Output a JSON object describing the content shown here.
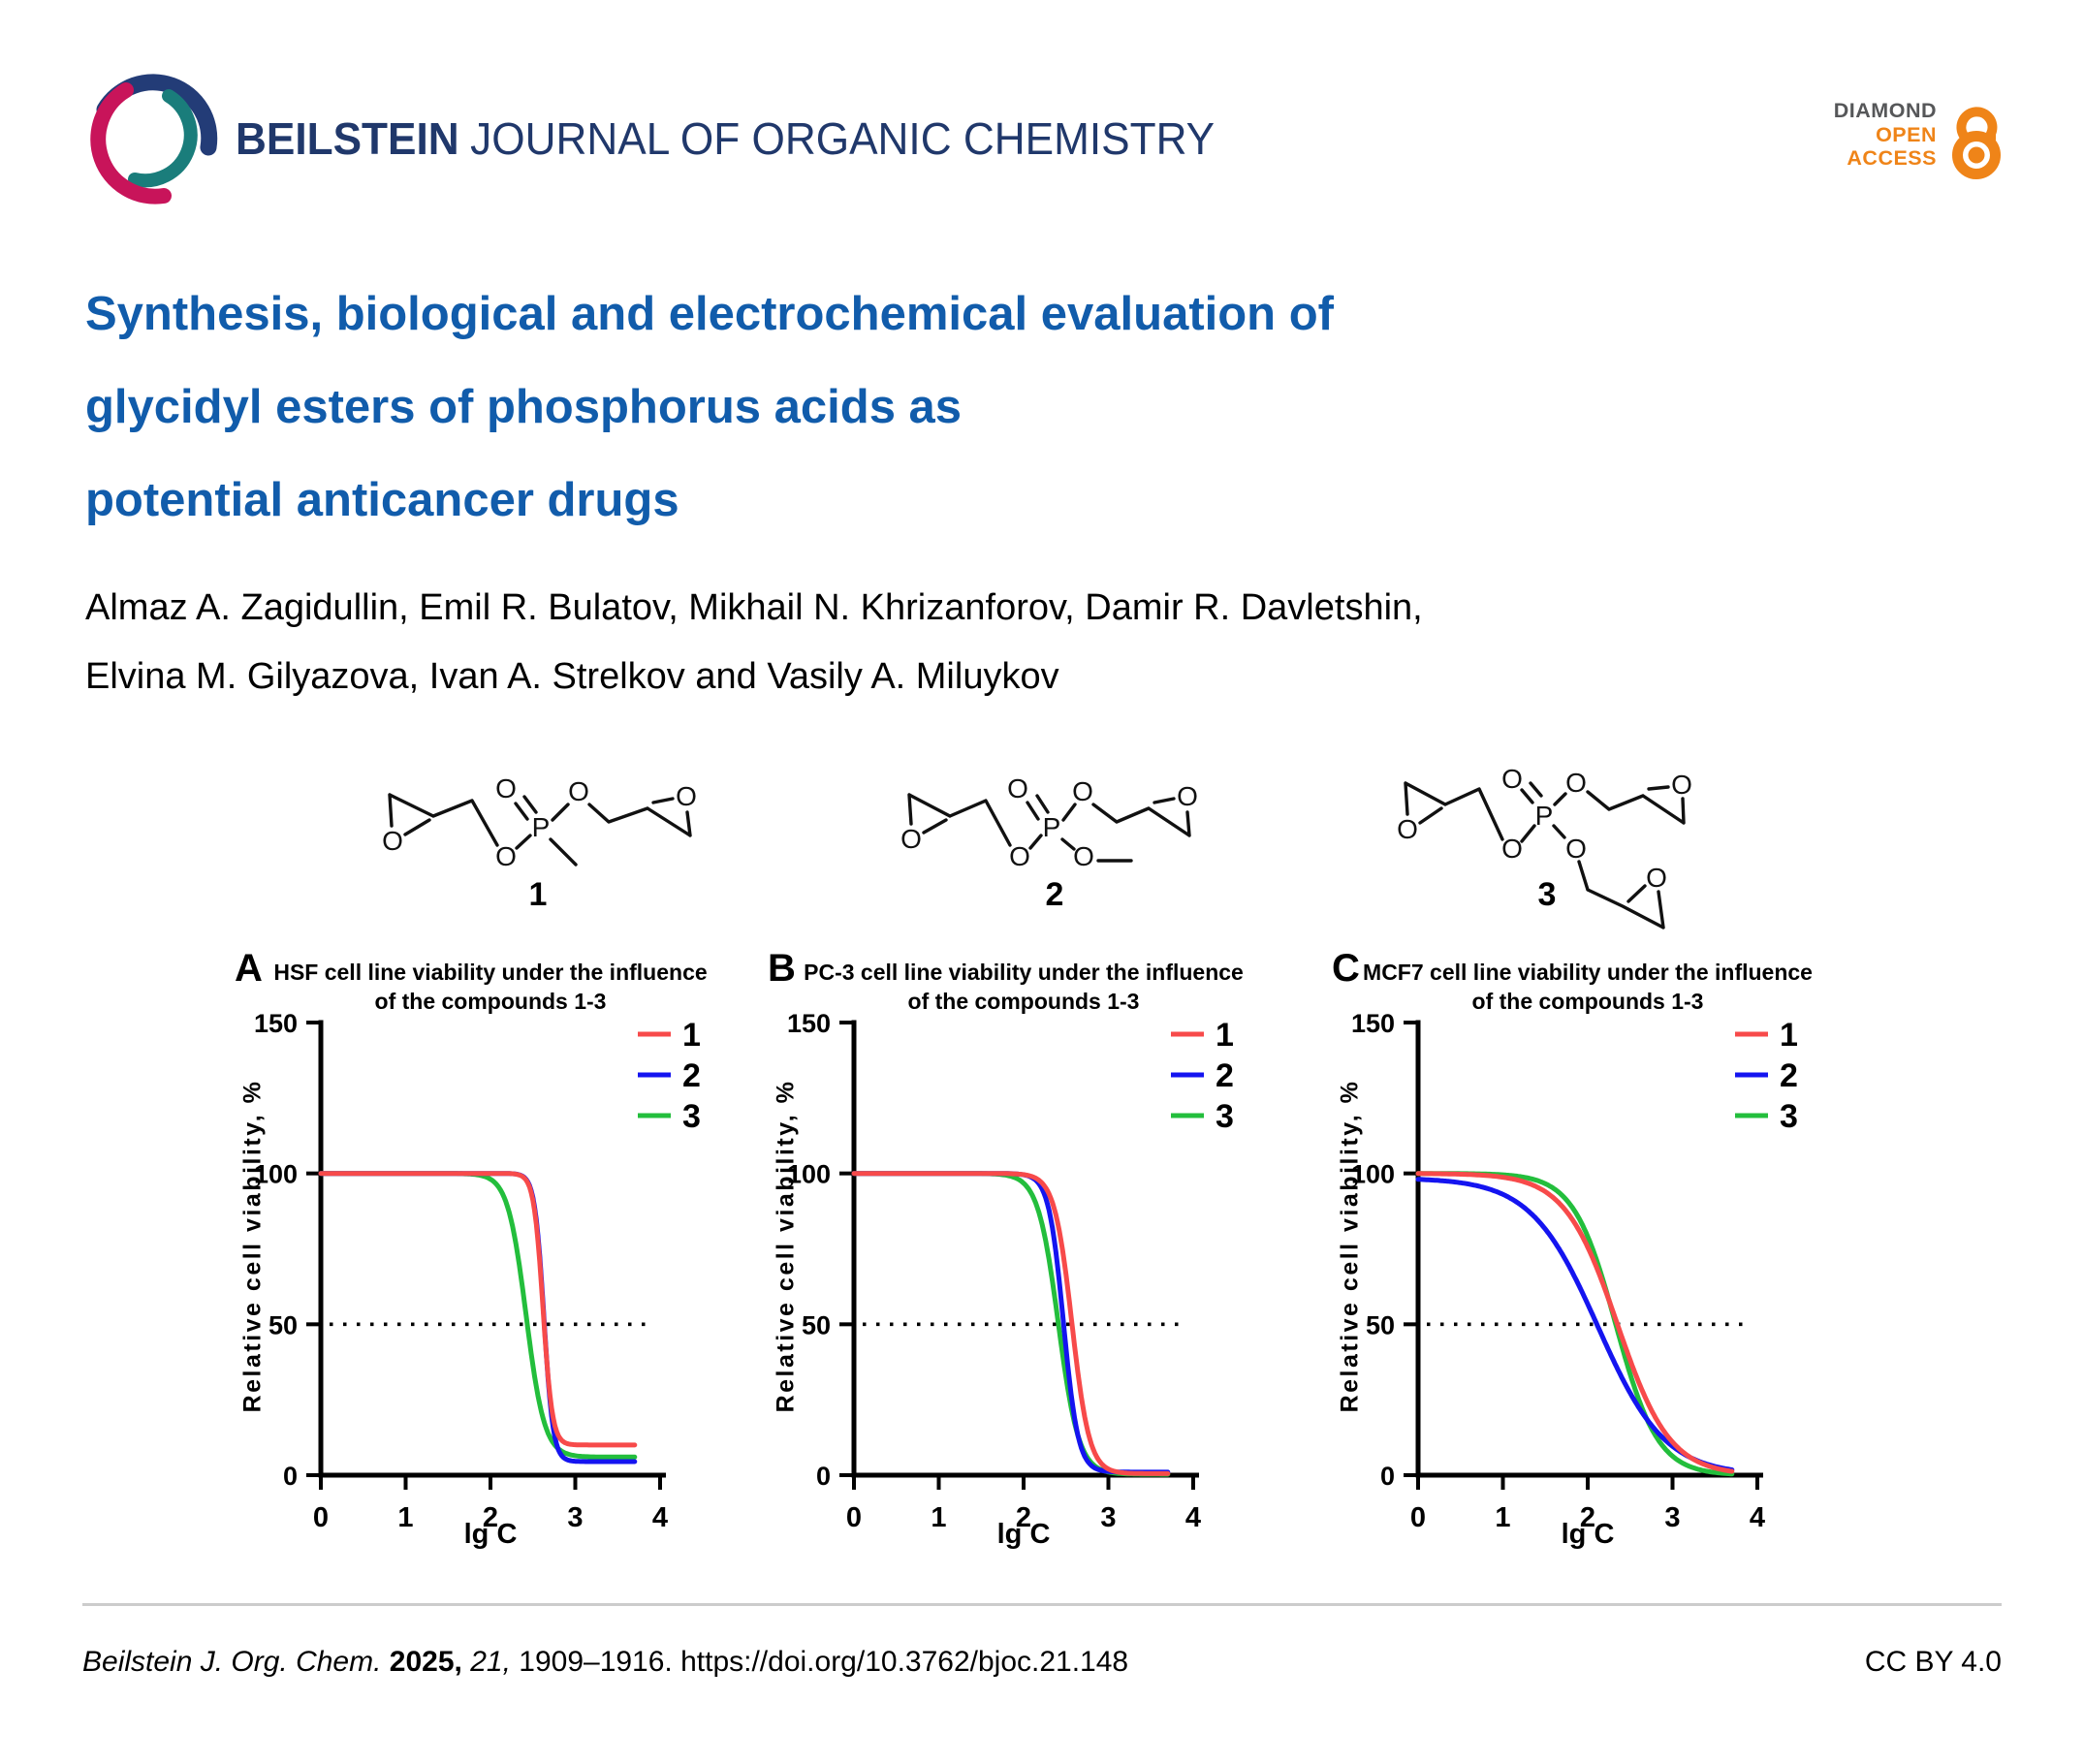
{
  "header": {
    "journal_bold": "BEILSTEIN",
    "journal_rest": "JOURNAL OF ORGANIC CHEMISTRY",
    "badge": {
      "line1": "DIAMOND",
      "line2": "OPEN",
      "line3": "ACCESS"
    }
  },
  "title_lines": [
    "Synthesis, biological and electrochemical evaluation of",
    "glycidyl esters of phosphorus acids as",
    "potential anticancer drugs"
  ],
  "authors_lines": [
    "Almaz A. Zagidullin, Emil R. Bulatov, Mikhail N. Khrizanforov, Damir R. Davletshin,",
    "Elvina M. Gilyazova, Ivan A. Strelkov and Vasily A. Miluykov"
  ],
  "structures": {
    "compounds": [
      {
        "number": "1",
        "atoms": [
          "O",
          "O",
          "P",
          "O",
          "O",
          "O"
        ]
      },
      {
        "number": "2",
        "atoms": [
          "O",
          "O",
          "P",
          "O",
          "O",
          "O",
          "O"
        ]
      },
      {
        "number": "3",
        "atoms": [
          "O",
          "O",
          "P",
          "O",
          "O",
          "O",
          "O",
          "O"
        ]
      }
    ]
  },
  "chart_data": [
    {
      "panel": "A",
      "type": "line",
      "cell_line": "HSF",
      "title": "HSF cell line viability under the influence of the compounds 1-3",
      "title_lines": [
        "HSF cell line viability under the influence",
        "of the compounds 1-3"
      ],
      "xlabel": "lg C",
      "ylabel": "Relative cell viability, %",
      "xlim": [
        0,
        4
      ],
      "ylim": [
        0,
        150
      ],
      "x_ticks": [
        0,
        1,
        2,
        3,
        4
      ],
      "y_ticks": [
        0,
        50,
        100,
        150
      ],
      "reference_line_y": 50,
      "curve_x_range": [
        0,
        3.7
      ],
      "legend_position": "top-right",
      "grid": false,
      "x_samples": [
        0,
        0.5,
        1,
        1.5,
        2,
        2.25,
        2.5,
        2.75,
        3,
        3.25,
        3.5,
        3.7
      ],
      "series": [
        {
          "name": "1",
          "color": "#F74A4A",
          "logistic": {
            "top": 100,
            "bottom": 10,
            "logIC50": 2.62,
            "hill": 8
          },
          "y_samples": [
            100,
            100,
            100,
            100,
            100,
            99.9,
            91.2,
            18.2,
            10.1,
            10,
            10,
            10
          ]
        },
        {
          "name": "2",
          "color": "#1414F0",
          "logistic": {
            "top": 100,
            "bottom": 4.5,
            "logIC50": 2.63,
            "hill": 8
          },
          "y_samples": [
            100,
            100,
            100,
            100,
            100,
            99.9,
            92,
            13.9,
            4.6,
            4.5,
            4.5,
            4.5
          ]
        },
        {
          "name": "3",
          "color": "#23BE3C",
          "logistic": {
            "top": 100,
            "bottom": 6,
            "logIC50": 2.42,
            "hill": 4
          },
          "y_samples": [
            100,
            100,
            100,
            99.9,
            98.1,
            83.7,
            36.4,
            10.3,
            6.4,
            6.1,
            6,
            6
          ]
        }
      ]
    },
    {
      "panel": "B",
      "type": "line",
      "cell_line": "PC-3",
      "title": "PC-3 cell line viability under the influence of the compounds 1-3",
      "title_lines": [
        "PC-3 cell line viability under the influence",
        "of the compounds 1-3"
      ],
      "xlabel": "lg C",
      "ylabel": "Relative cell viability, %",
      "xlim": [
        0,
        4
      ],
      "ylim": [
        0,
        150
      ],
      "x_ticks": [
        0,
        1,
        2,
        3,
        4
      ],
      "y_ticks": [
        0,
        50,
        100,
        150
      ],
      "reference_line_y": 50,
      "curve_x_range": [
        0,
        3.7
      ],
      "legend_position": "top-right",
      "grid": false,
      "x_samples": [
        0,
        0.5,
        1,
        1.5,
        2,
        2.25,
        2.5,
        2.75,
        3,
        3.25,
        3.5,
        3.7
      ],
      "series": [
        {
          "name": "1",
          "color": "#F74A4A",
          "logistic": {
            "top": 100,
            "bottom": 0.5,
            "logIC50": 2.57,
            "hill": 4.2
          },
          "y_samples": [
            100,
            100,
            100,
            100,
            99.6,
            95.7,
            66.5,
            15.3,
            2,
            0.9,
            0.6,
            0.5
          ]
        },
        {
          "name": "2",
          "color": "#1414F0",
          "logistic": {
            "top": 100,
            "bottom": 1,
            "logIC50": 2.47,
            "hill": 5
          },
          "y_samples": [
            100,
            100,
            100,
            100,
            99.6,
            92.7,
            42,
            4.8,
            1.2,
            1,
            1,
            1
          ]
        },
        {
          "name": "3",
          "color": "#23BE3C",
          "logistic": {
            "top": 100,
            "bottom": 0.3,
            "logIC50": 2.41,
            "hill": 3.6
          },
          "y_samples": [
            100,
            100,
            100,
            99.8,
            96.8,
            79.1,
            32.4,
            5.9,
            1,
            0.5,
            0.3,
            0.3
          ]
        }
      ]
    },
    {
      "panel": "C",
      "type": "line",
      "cell_line": "MCF7",
      "title": "MCF7 cell line viability under the influence of the compounds 1-3",
      "title_lines": [
        "MCF7 cell line viability under the influence",
        "of the compounds 1-3"
      ],
      "xlabel": "lg C",
      "ylabel": "Relative cell viability, %",
      "xlim": [
        0,
        4
      ],
      "ylim": [
        0,
        150
      ],
      "x_ticks": [
        0,
        1,
        2,
        3,
        4
      ],
      "y_ticks": [
        0,
        50,
        100,
        150
      ],
      "reference_line_y": 50,
      "curve_x_range": [
        0,
        3.7
      ],
      "legend_position": "top-right",
      "grid": false,
      "x_samples": [
        0,
        0.5,
        1,
        1.5,
        2,
        2.25,
        2.5,
        2.75,
        3,
        3.25,
        3.5,
        3.7
      ],
      "series": [
        {
          "name": "1",
          "color": "#F74A4A",
          "logistic": {
            "top": 100,
            "bottom": 0,
            "logIC50": 2.35,
            "hill": 1.4
          },
          "y_samples": [
            100,
            99.7,
            98.7,
            93.9,
            75.5,
            58,
            38.2,
            21.6,
            11,
            5.2,
            2.4,
            1.3
          ]
        },
        {
          "name": "2",
          "color": "#1414F0",
          "logistic": {
            "top": 98.5,
            "bottom": 0,
            "logIC50": 2.12,
            "hill": 1.1
          },
          "y_samples": [
            98,
            96.9,
            93,
            81.5,
            56.7,
            41.2,
            27.2,
            16.6,
            9.6,
            5.3,
            2.9,
            1.8
          ]
        },
        {
          "name": "3",
          "color": "#23BE3C",
          "logistic": {
            "top": 100,
            "bottom": 0,
            "logIC50": 2.33,
            "hill": 1.75
          },
          "y_samples": [
            100,
            99.9,
            99.5,
            96.6,
            79.1,
            58,
            33.5,
            15.6,
            6.3,
            2.4,
            0.9,
            0.4
          ]
        }
      ]
    }
  ],
  "footer": {
    "journal": "Beilstein J. Org. Chem.",
    "year": "2025,",
    "volume": "21,",
    "pages": "1909–1916. https://doi.org/10.3762/bjoc.21.148",
    "license": "CC BY 4.0"
  },
  "colors": {
    "title_blue": "#115CAB",
    "header_navy": "#20386B",
    "logo_navy": "#233C77",
    "logo_teal": "#1A7D7B",
    "logo_crimson": "#C8145A",
    "open_access_orange": "#EF8418",
    "badge_gray": "#565759",
    "series_red": "#F74A4A",
    "series_blue": "#1414F0",
    "series_green": "#23BE3C"
  }
}
